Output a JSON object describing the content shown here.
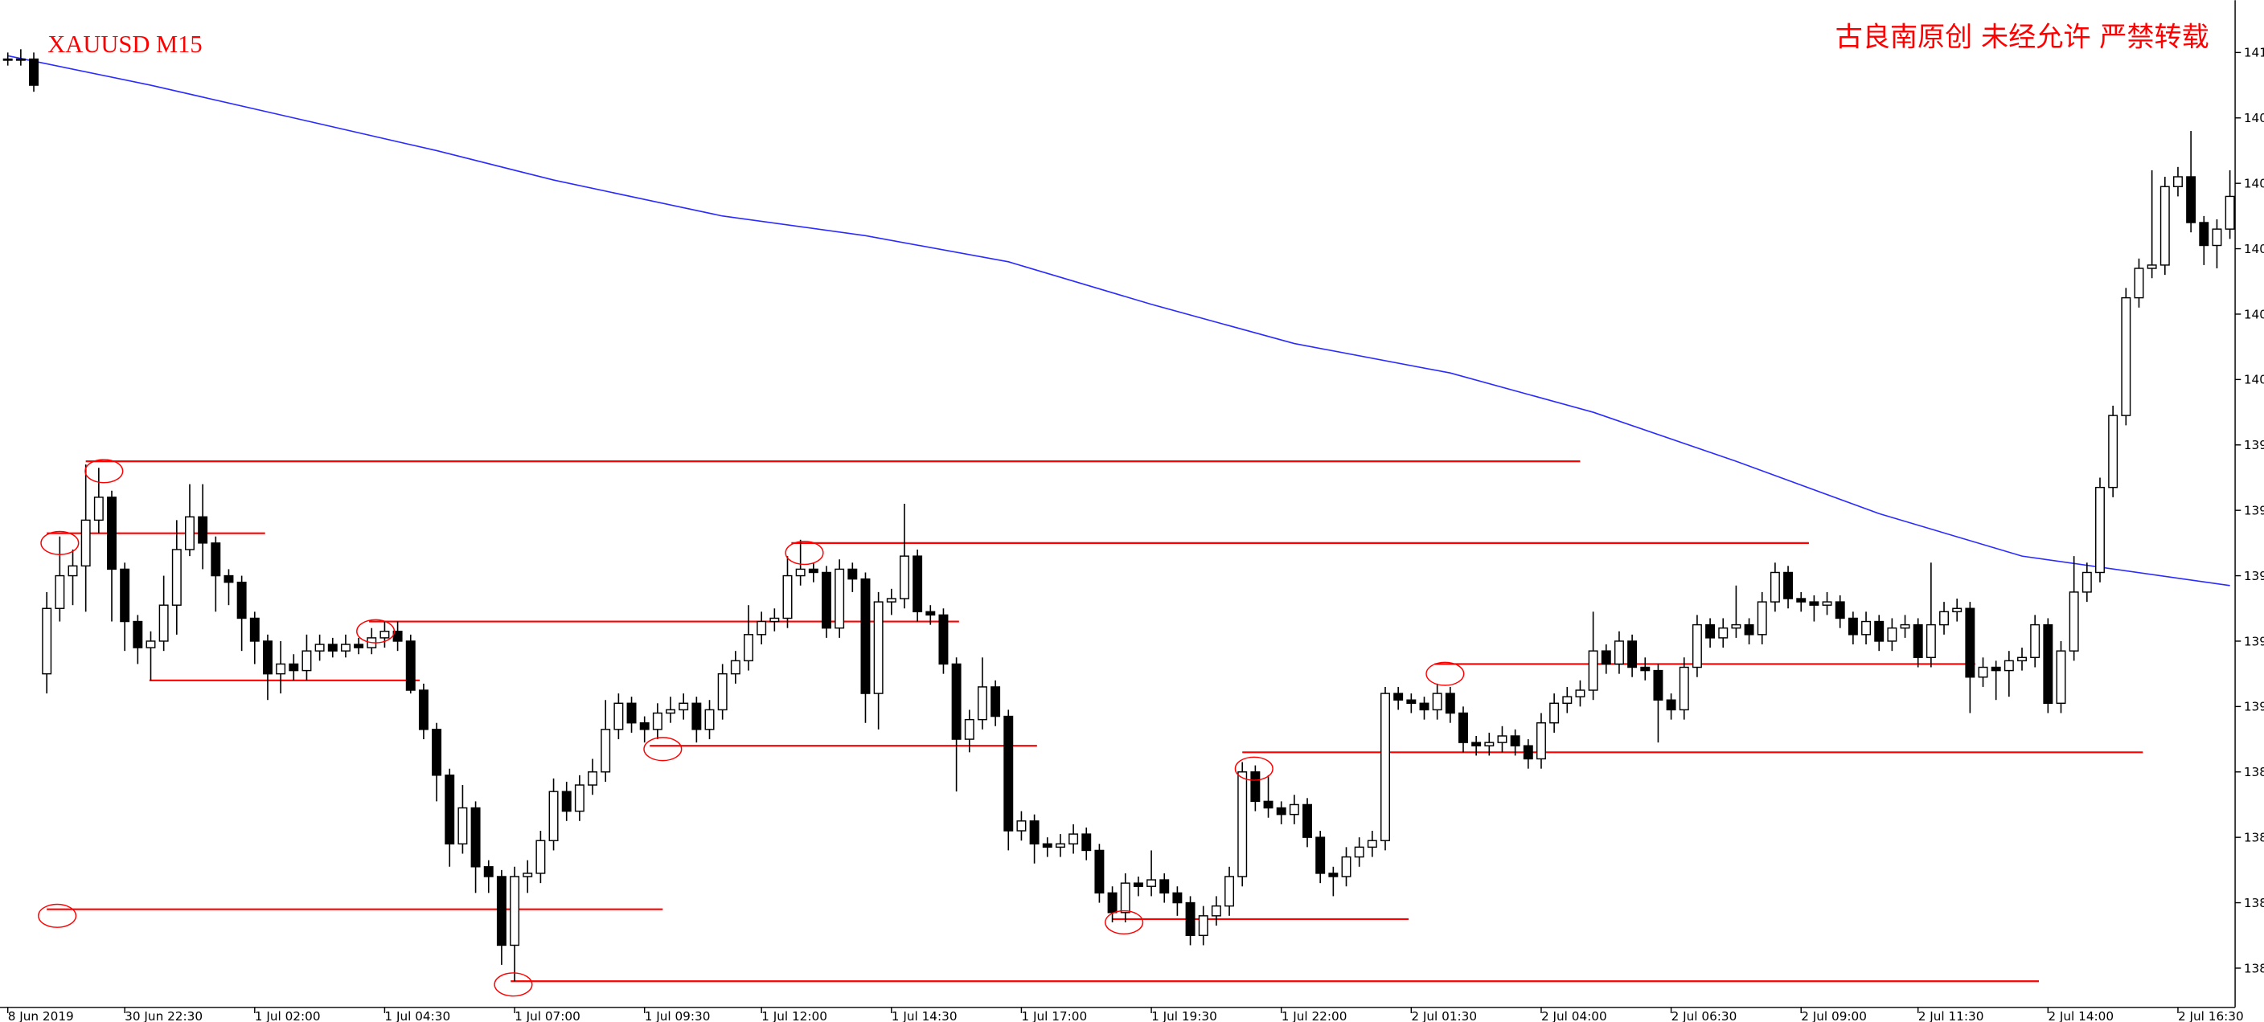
{
  "chart_data": {
    "type": "candlestick",
    "title": "XAUUSD M15",
    "subtitle": "古良南原创 未经允许 严禁转载",
    "xlim": [
      -0.6,
      171.4
    ],
    "ylim": [
      1380.8,
      1411.6
    ],
    "xticks": [
      {
        "value": 0,
        "label": "8 Jun 2019"
      },
      {
        "value": 9,
        "label": "30 Jun 22:30"
      },
      {
        "value": 19,
        "label": "1 Jul 02:00"
      },
      {
        "value": 29,
        "label": "1 Jul 04:30"
      },
      {
        "value": 39,
        "label": "1 Jul 07:00"
      },
      {
        "value": 49,
        "label": "1 Jul 09:30"
      },
      {
        "value": 58,
        "label": "1 Jul 12:00"
      },
      {
        "value": 68,
        "label": "1 Jul 14:30"
      },
      {
        "value": 78,
        "label": "1 Jul 17:00"
      },
      {
        "value": 88,
        "label": "1 Jul 19:30"
      },
      {
        "value": 98,
        "label": "1 Jul 22:00"
      },
      {
        "value": 108,
        "label": "2 Jul 01:30"
      },
      {
        "value": 118,
        "label": "2 Jul 04:00"
      },
      {
        "value": 128,
        "label": "2 Jul 06:30"
      },
      {
        "value": 138,
        "label": "2 Jul 09:00"
      },
      {
        "value": 147,
        "label": "2 Jul 11:30"
      },
      {
        "value": 157,
        "label": "2 Jul 14:00"
      },
      {
        "value": 167,
        "label": "2 Jul 16:30"
      }
    ],
    "yticks": [
      {
        "value": 1410,
        "label": "141"
      },
      {
        "value": 1408,
        "label": "140"
      },
      {
        "value": 1406,
        "label": "140"
      },
      {
        "value": 1404,
        "label": "140"
      },
      {
        "value": 1402,
        "label": "140"
      },
      {
        "value": 1400,
        "label": "140"
      },
      {
        "value": 1398,
        "label": "139"
      },
      {
        "value": 1396,
        "label": "139"
      },
      {
        "value": 1394,
        "label": "139"
      },
      {
        "value": 1392,
        "label": "139"
      },
      {
        "value": 1390,
        "label": "139"
      },
      {
        "value": 1388,
        "label": "138"
      },
      {
        "value": 1386,
        "label": "138"
      },
      {
        "value": 1384,
        "label": "138"
      },
      {
        "value": 1382,
        "label": "138"
      }
    ],
    "up_color": "#ffffff",
    "down_color": "#000000",
    "outline_color": "#000000",
    "ohlc": [
      [
        1409.8,
        1410.0,
        1409.6,
        1409.8
      ],
      [
        1409.8,
        1410.1,
        1409.6,
        1409.8
      ],
      [
        1409.8,
        1410.0,
        1408.8,
        1409.0
      ],
      [
        1391.0,
        1393.5,
        1390.4,
        1393.0
      ],
      [
        1393.0,
        1395.2,
        1392.6,
        1394.0
      ],
      [
        1394.0,
        1394.8,
        1393.1,
        1394.3
      ],
      [
        1394.3,
        1397.4,
        1392.9,
        1395.7
      ],
      [
        1395.7,
        1397.3,
        1395.3,
        1396.4
      ],
      [
        1396.4,
        1396.6,
        1392.6,
        1394.2
      ],
      [
        1394.2,
        1394.4,
        1391.7,
        1392.6
      ],
      [
        1392.6,
        1392.8,
        1391.3,
        1391.8
      ],
      [
        1391.8,
        1392.3,
        1390.8,
        1392.0
      ],
      [
        1392.0,
        1394.0,
        1391.7,
        1393.1
      ],
      [
        1393.1,
        1395.7,
        1392.2,
        1394.8
      ],
      [
        1394.8,
        1396.8,
        1394.6,
        1395.8
      ],
      [
        1395.8,
        1396.8,
        1394.2,
        1395.0
      ],
      [
        1395.0,
        1395.2,
        1392.9,
        1394.0
      ],
      [
        1394.0,
        1394.2,
        1393.1,
        1393.8
      ],
      [
        1393.8,
        1394.0,
        1391.7,
        1392.7
      ],
      [
        1392.7,
        1392.9,
        1391.3,
        1392.0
      ],
      [
        1392.0,
        1392.2,
        1390.2,
        1391.0
      ],
      [
        1391.0,
        1392.0,
        1390.4,
        1391.3
      ],
      [
        1391.3,
        1391.6,
        1390.8,
        1391.1
      ],
      [
        1391.1,
        1392.2,
        1390.8,
        1391.7
      ],
      [
        1391.7,
        1392.2,
        1391.4,
        1391.9
      ],
      [
        1391.9,
        1392.1,
        1391.5,
        1391.7
      ],
      [
        1391.7,
        1392.2,
        1391.5,
        1391.9
      ],
      [
        1391.9,
        1392.1,
        1391.6,
        1391.8
      ],
      [
        1391.8,
        1392.4,
        1391.6,
        1392.1
      ],
      [
        1392.1,
        1392.6,
        1391.8,
        1392.3
      ],
      [
        1392.3,
        1392.6,
        1391.7,
        1392.0
      ],
      [
        1392.0,
        1392.2,
        1390.4,
        1390.5
      ],
      [
        1390.5,
        1390.7,
        1389.0,
        1389.3
      ],
      [
        1389.3,
        1389.5,
        1387.1,
        1387.9
      ],
      [
        1387.9,
        1388.1,
        1385.1,
        1385.8
      ],
      [
        1385.8,
        1387.6,
        1385.5,
        1386.9
      ],
      [
        1386.9,
        1387.1,
        1384.3,
        1385.1
      ],
      [
        1385.1,
        1385.3,
        1384.3,
        1384.8
      ],
      [
        1384.8,
        1385.0,
        1382.1,
        1382.7
      ],
      [
        1382.7,
        1385.1,
        1381.6,
        1384.8
      ],
      [
        1384.8,
        1385.3,
        1384.3,
        1384.9
      ],
      [
        1384.9,
        1386.2,
        1384.6,
        1385.9
      ],
      [
        1385.9,
        1387.8,
        1385.6,
        1387.4
      ],
      [
        1387.4,
        1387.7,
        1386.5,
        1386.8
      ],
      [
        1386.8,
        1387.9,
        1386.5,
        1387.6
      ],
      [
        1387.6,
        1388.4,
        1387.3,
        1388.0
      ],
      [
        1388.0,
        1390.2,
        1387.7,
        1389.3
      ],
      [
        1389.3,
        1390.4,
        1389.0,
        1390.1
      ],
      [
        1390.1,
        1390.3,
        1389.2,
        1389.5
      ],
      [
        1389.5,
        1389.7,
        1388.9,
        1389.3
      ],
      [
        1389.3,
        1390.1,
        1389.0,
        1389.8
      ],
      [
        1389.8,
        1390.3,
        1389.5,
        1389.9
      ],
      [
        1389.9,
        1390.4,
        1389.6,
        1390.1
      ],
      [
        1390.1,
        1390.3,
        1388.9,
        1389.3
      ],
      [
        1389.3,
        1390.2,
        1389.0,
        1389.9
      ],
      [
        1389.9,
        1391.3,
        1389.6,
        1391.0
      ],
      [
        1391.0,
        1391.7,
        1390.7,
        1391.4
      ],
      [
        1391.4,
        1393.1,
        1391.1,
        1392.2
      ],
      [
        1392.2,
        1392.9,
        1391.9,
        1392.6
      ],
      [
        1392.6,
        1393.0,
        1392.3,
        1392.7
      ],
      [
        1392.7,
        1394.6,
        1392.4,
        1394.0
      ],
      [
        1394.0,
        1395.1,
        1393.7,
        1394.2
      ],
      [
        1394.2,
        1394.4,
        1393.8,
        1394.1
      ],
      [
        1394.1,
        1394.3,
        1392.1,
        1392.4
      ],
      [
        1392.4,
        1394.5,
        1392.1,
        1394.2
      ],
      [
        1394.2,
        1394.4,
        1393.5,
        1393.9
      ],
      [
        1393.9,
        1394.1,
        1389.5,
        1390.4
      ],
      [
        1390.4,
        1393.5,
        1389.3,
        1393.2
      ],
      [
        1393.2,
        1393.6,
        1392.8,
        1393.3
      ],
      [
        1393.3,
        1396.2,
        1393.0,
        1394.6
      ],
      [
        1394.6,
        1394.8,
        1392.6,
        1392.9
      ],
      [
        1392.9,
        1393.1,
        1392.5,
        1392.8
      ],
      [
        1392.8,
        1393.0,
        1391.0,
        1391.3
      ],
      [
        1391.3,
        1391.5,
        1387.4,
        1389.0
      ],
      [
        1389.0,
        1389.9,
        1388.6,
        1389.6
      ],
      [
        1389.6,
        1391.5,
        1389.3,
        1390.6
      ],
      [
        1390.6,
        1390.8,
        1389.4,
        1389.7
      ],
      [
        1389.7,
        1389.9,
        1385.6,
        1386.2
      ],
      [
        1386.2,
        1386.8,
        1385.9,
        1386.5
      ],
      [
        1386.5,
        1386.7,
        1385.2,
        1385.8
      ],
      [
        1385.8,
        1386.0,
        1385.4,
        1385.7
      ],
      [
        1385.7,
        1386.1,
        1385.4,
        1385.8
      ],
      [
        1385.8,
        1386.4,
        1385.5,
        1386.1
      ],
      [
        1386.1,
        1386.3,
        1385.3,
        1385.6
      ],
      [
        1385.6,
        1385.8,
        1384.0,
        1384.3
      ],
      [
        1384.3,
        1384.5,
        1383.4,
        1383.7
      ],
      [
        1383.7,
        1384.9,
        1383.4,
        1384.6
      ],
      [
        1384.6,
        1384.8,
        1384.2,
        1384.5
      ],
      [
        1384.5,
        1385.6,
        1384.2,
        1384.7
      ],
      [
        1384.7,
        1384.9,
        1384.0,
        1384.3
      ],
      [
        1384.3,
        1384.5,
        1383.6,
        1384.0
      ],
      [
        1384.0,
        1384.2,
        1382.7,
        1383.0
      ],
      [
        1383.0,
        1383.9,
        1382.7,
        1383.6
      ],
      [
        1383.6,
        1384.2,
        1383.3,
        1383.9
      ],
      [
        1383.9,
        1385.1,
        1383.6,
        1384.8
      ],
      [
        1384.8,
        1388.3,
        1384.5,
        1388.0
      ],
      [
        1388.0,
        1388.2,
        1386.8,
        1387.1
      ],
      [
        1387.1,
        1387.9,
        1386.6,
        1386.9
      ],
      [
        1386.9,
        1387.1,
        1386.4,
        1386.7
      ],
      [
        1386.7,
        1387.3,
        1386.4,
        1387.0
      ],
      [
        1387.0,
        1387.2,
        1385.7,
        1386.0
      ],
      [
        1386.0,
        1386.2,
        1384.6,
        1384.9
      ],
      [
        1384.9,
        1385.1,
        1384.2,
        1384.8
      ],
      [
        1384.8,
        1385.7,
        1384.5,
        1385.4
      ],
      [
        1385.4,
        1386.0,
        1385.1,
        1385.7
      ],
      [
        1385.7,
        1386.2,
        1385.4,
        1385.9
      ],
      [
        1385.9,
        1390.6,
        1385.6,
        1390.4
      ],
      [
        1390.4,
        1390.6,
        1389.9,
        1390.2
      ],
      [
        1390.2,
        1390.4,
        1389.8,
        1390.1
      ],
      [
        1390.1,
        1390.3,
        1389.6,
        1389.9
      ],
      [
        1389.9,
        1390.7,
        1389.6,
        1390.4
      ],
      [
        1390.4,
        1390.6,
        1389.5,
        1389.8
      ],
      [
        1389.8,
        1390.0,
        1388.6,
        1388.9
      ],
      [
        1388.9,
        1389.1,
        1388.5,
        1388.8
      ],
      [
        1388.8,
        1389.2,
        1388.5,
        1388.9
      ],
      [
        1388.9,
        1389.4,
        1388.6,
        1389.1
      ],
      [
        1389.1,
        1389.3,
        1388.5,
        1388.8
      ],
      [
        1388.8,
        1389.0,
        1388.1,
        1388.4
      ],
      [
        1388.4,
        1389.8,
        1388.1,
        1389.5
      ],
      [
        1389.5,
        1390.4,
        1389.2,
        1390.1
      ],
      [
        1390.1,
        1390.6,
        1389.8,
        1390.3
      ],
      [
        1390.3,
        1390.8,
        1390.0,
        1390.5
      ],
      [
        1390.5,
        1392.9,
        1390.2,
        1391.7
      ],
      [
        1391.7,
        1391.9,
        1391.0,
        1391.3
      ],
      [
        1391.3,
        1392.3,
        1391.0,
        1392.0
      ],
      [
        1392.0,
        1392.2,
        1390.9,
        1391.2
      ],
      [
        1391.2,
        1391.5,
        1390.8,
        1391.1
      ],
      [
        1391.1,
        1391.3,
        1388.9,
        1390.2
      ],
      [
        1390.2,
        1390.4,
        1389.6,
        1389.9
      ],
      [
        1389.9,
        1391.5,
        1389.6,
        1391.2
      ],
      [
        1391.2,
        1392.8,
        1390.9,
        1392.5
      ],
      [
        1392.5,
        1392.7,
        1391.8,
        1392.1
      ],
      [
        1392.1,
        1392.7,
        1391.8,
        1392.4
      ],
      [
        1392.4,
        1393.7,
        1392.1,
        1392.5
      ],
      [
        1392.5,
        1392.7,
        1391.9,
        1392.2
      ],
      [
        1392.2,
        1393.5,
        1391.9,
        1393.2
      ],
      [
        1393.2,
        1394.4,
        1392.9,
        1394.1
      ],
      [
        1394.1,
        1394.3,
        1393.0,
        1393.3
      ],
      [
        1393.3,
        1393.5,
        1392.9,
        1393.2
      ],
      [
        1393.2,
        1393.4,
        1392.6,
        1393.1
      ],
      [
        1393.1,
        1393.5,
        1392.8,
        1393.2
      ],
      [
        1393.2,
        1393.4,
        1392.4,
        1392.7
      ],
      [
        1392.7,
        1392.9,
        1391.9,
        1392.2
      ],
      [
        1392.2,
        1392.9,
        1391.9,
        1392.6
      ],
      [
        1392.6,
        1392.8,
        1391.7,
        1392.0
      ],
      [
        1392.0,
        1392.7,
        1391.7,
        1392.4
      ],
      [
        1392.4,
        1392.8,
        1392.1,
        1392.5
      ],
      [
        1392.5,
        1392.7,
        1391.2,
        1391.5
      ],
      [
        1391.5,
        1394.4,
        1391.2,
        1392.5
      ],
      [
        1392.5,
        1393.2,
        1392.2,
        1392.9
      ],
      [
        1392.9,
        1393.3,
        1392.6,
        1393.0
      ],
      [
        1393.0,
        1393.2,
        1389.8,
        1390.9
      ],
      [
        1390.9,
        1391.5,
        1390.6,
        1391.2
      ],
      [
        1391.2,
        1391.4,
        1390.2,
        1391.1
      ],
      [
        1391.1,
        1391.7,
        1390.3,
        1391.4
      ],
      [
        1391.4,
        1391.8,
        1391.1,
        1391.5
      ],
      [
        1391.5,
        1392.8,
        1391.2,
        1392.5
      ],
      [
        1392.5,
        1392.7,
        1389.8,
        1390.1
      ],
      [
        1390.1,
        1392.0,
        1389.8,
        1391.7
      ],
      [
        1391.7,
        1394.6,
        1391.4,
        1393.5
      ],
      [
        1393.5,
        1394.4,
        1393.2,
        1394.1
      ],
      [
        1394.1,
        1397.0,
        1393.8,
        1396.7
      ],
      [
        1396.7,
        1399.2,
        1396.4,
        1398.9
      ],
      [
        1398.9,
        1402.8,
        1398.6,
        1402.5
      ],
      [
        1402.5,
        1403.7,
        1402.2,
        1403.4
      ],
      [
        1403.4,
        1406.4,
        1403.1,
        1403.5
      ],
      [
        1403.5,
        1406.2,
        1403.2,
        1405.9
      ],
      [
        1405.9,
        1406.5,
        1405.6,
        1406.2
      ],
      [
        1406.2,
        1407.6,
        1404.5,
        1404.8
      ],
      [
        1404.8,
        1405.0,
        1403.5,
        1404.1
      ],
      [
        1404.1,
        1404.9,
        1403.4,
        1404.6
      ],
      [
        1404.6,
        1406.4,
        1404.3,
        1405.6
      ]
    ],
    "ma": {
      "color": "#2b2bff",
      "x": [
        0,
        11,
        22,
        33,
        42,
        55,
        66,
        77,
        88,
        99,
        111,
        122,
        133,
        144,
        155,
        171
      ],
      "values": [
        1409.9,
        1409.0,
        1408.0,
        1407.0,
        1406.1,
        1405.0,
        1404.4,
        1403.6,
        1402.3,
        1401.1,
        1400.2,
        1399.0,
        1397.5,
        1395.9,
        1394.6,
        1393.7
      ]
    },
    "line_color": "#ff0000",
    "hlines": [
      {
        "x": [
          6,
          121
        ],
        "y": 1397.5
      },
      {
        "x": [
          3,
          19.8
        ],
        "y": 1395.3
      },
      {
        "x": [
          27.8,
          73.2
        ],
        "y": 1392.6
      },
      {
        "x": [
          10.9,
          31.7
        ],
        "y": 1390.8
      },
      {
        "x": [
          60.3,
          138.6
        ],
        "y": 1395.0
      },
      {
        "x": [
          49.4,
          79.2
        ],
        "y": 1388.8
      },
      {
        "x": [
          109.8,
          151.4
        ],
        "y": 1391.3
      },
      {
        "x": [
          95,
          164.3
        ],
        "y": 1388.6
      },
      {
        "x": [
          3,
          50.4
        ],
        "y": 1383.8
      },
      {
        "x": [
          85,
          107.8
        ],
        "y": 1383.5
      },
      {
        "x": [
          38.7,
          156.3
        ],
        "y": 1381.6
      }
    ],
    "circles": [
      {
        "x": 7.4,
        "y": 1397.2
      },
      {
        "x": 4.0,
        "y": 1395.0
      },
      {
        "x": 3.8,
        "y": 1383.6
      },
      {
        "x": 28.3,
        "y": 1392.3
      },
      {
        "x": 61.3,
        "y": 1394.7
      },
      {
        "x": 50.4,
        "y": 1388.7
      },
      {
        "x": 38.9,
        "y": 1381.5
      },
      {
        "x": 85.9,
        "y": 1383.4
      },
      {
        "x": 95.9,
        "y": 1388.1
      },
      {
        "x": 110.6,
        "y": 1391.0
      }
    ]
  }
}
